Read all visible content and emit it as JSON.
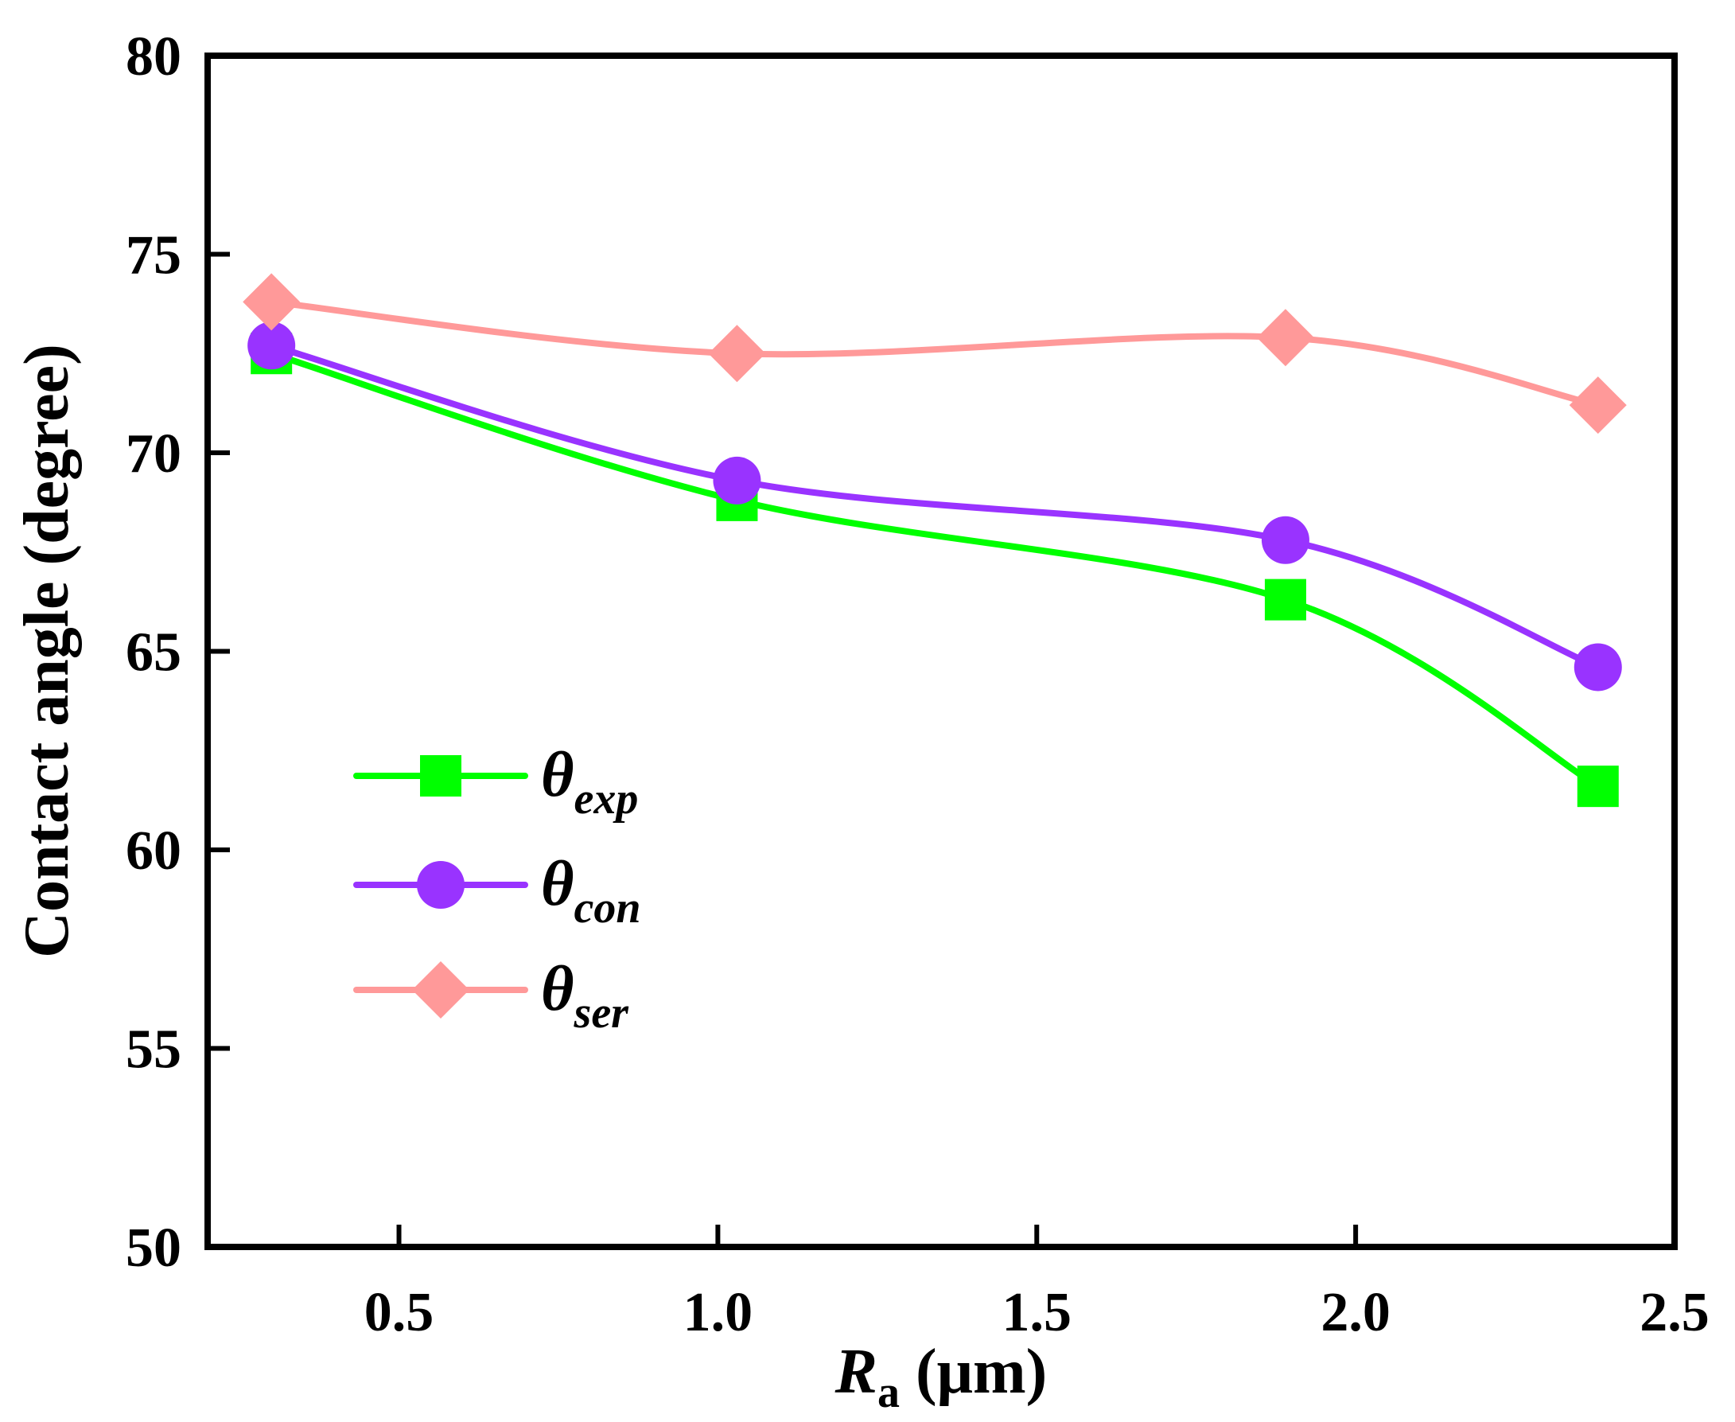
{
  "chart_data": {
    "type": "line",
    "title": "",
    "xlabel": {
      "main": "R",
      "sub": "a",
      "unit": " (μm)"
    },
    "ylabel": "Contact angle (degree)",
    "xlim": [
      0.2,
      2.5
    ],
    "ylim": [
      50,
      80
    ],
    "x_ticks": [
      0.5,
      1.0,
      1.5,
      2.0,
      2.5
    ],
    "x_tick_labels": [
      "0.5",
      "1.0",
      "1.5",
      "2.0",
      "2.5"
    ],
    "y_ticks": [
      50,
      55,
      60,
      65,
      70,
      75,
      80
    ],
    "y_tick_labels": [
      "50",
      "55",
      "60",
      "65",
      "70",
      "75",
      "80"
    ],
    "grid": false,
    "legend_position": "lower-left",
    "x": [
      0.3,
      1.03,
      1.89,
      2.38
    ],
    "series": [
      {
        "name": "θexp",
        "symbol": "θ",
        "subscript": "exp",
        "color": "#00ff00",
        "marker": "square",
        "values": [
          72.5,
          68.8,
          66.3,
          61.6
        ]
      },
      {
        "name": "θcon",
        "symbol": "θ",
        "subscript": "con",
        "color": "#9933ff",
        "marker": "circle",
        "values": [
          72.7,
          69.3,
          67.8,
          64.6
        ]
      },
      {
        "name": "θser",
        "symbol": "θ",
        "subscript": "ser",
        "color": "#ff9999",
        "marker": "diamond",
        "values": [
          73.8,
          72.5,
          72.9,
          71.2
        ]
      }
    ]
  }
}
